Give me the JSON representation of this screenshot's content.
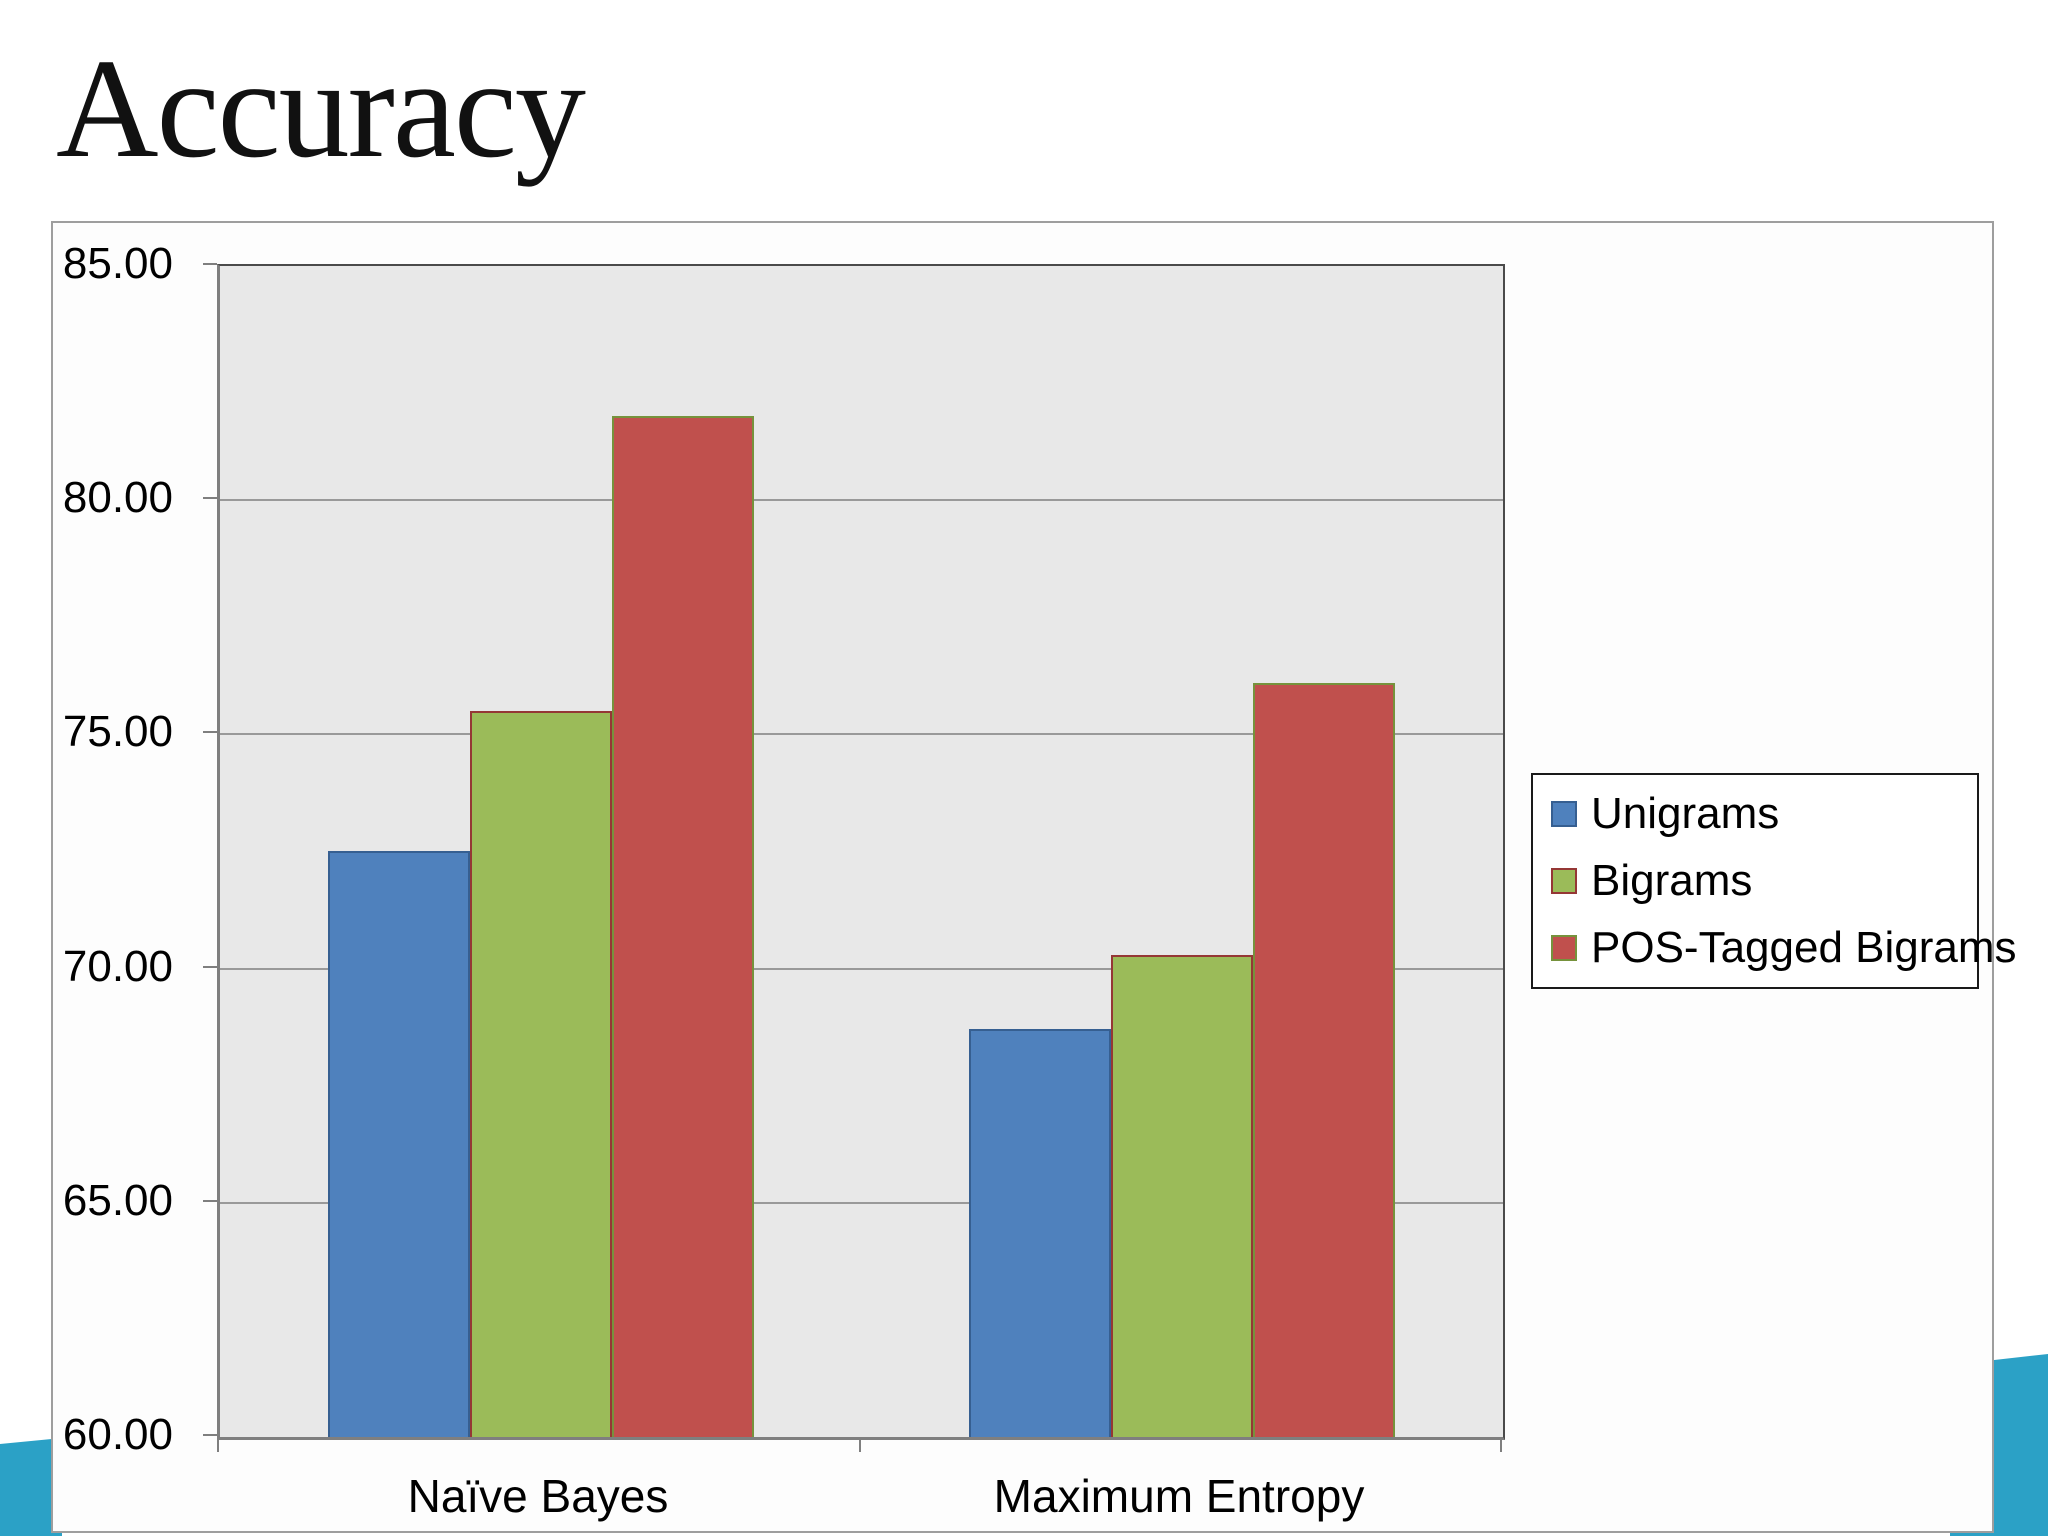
{
  "slide": {
    "title": "Accuracy",
    "accent_color": "#2ba1c6"
  },
  "chart_data": {
    "type": "bar",
    "title": "Accuracy",
    "categories": [
      "Naïve Bayes",
      "Maximum Entropy"
    ],
    "series": [
      {
        "name": "Unigrams",
        "values": [
          72.5,
          68.7
        ],
        "fill": "#4f81bd",
        "border": "#365f91"
      },
      {
        "name": "Bigrams",
        "values": [
          75.5,
          70.3
        ],
        "fill": "#9bbb59",
        "border": "#953735"
      },
      {
        "name": "POS-Tagged Bigrams",
        "values": [
          81.8,
          76.1
        ],
        "fill": "#c0504d",
        "border": "#76923c"
      }
    ],
    "ylim": [
      60,
      85
    ],
    "ytick_step": 5,
    "ytick_labels": [
      "85.00",
      "80.00",
      "75.00",
      "70.00",
      "65.00",
      "60.00"
    ],
    "grid": true,
    "legend_position": "right",
    "plot_bg": "#e8e8e8",
    "gridline_color": "#999999"
  }
}
